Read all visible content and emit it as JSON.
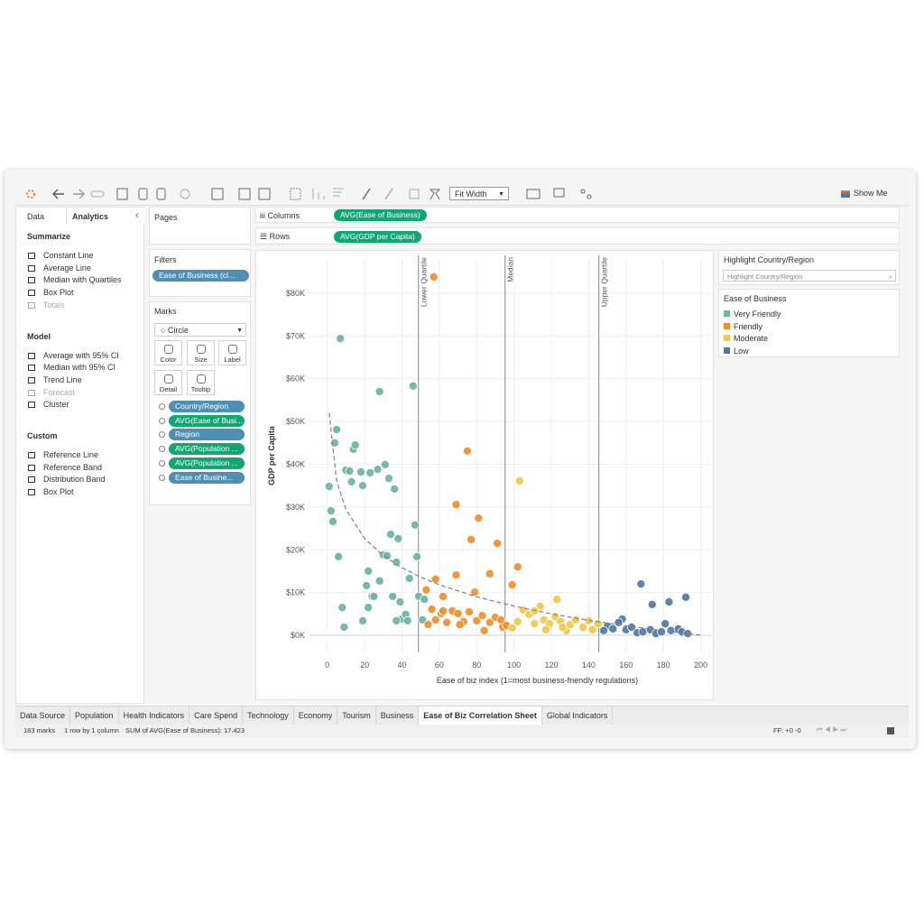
{
  "toolbar": {
    "fit": "Fit Width",
    "show_me": "Show Me"
  },
  "left_pane": {
    "tabs": [
      "Data",
      "Analytics"
    ],
    "sections": [
      {
        "title": "Summarize",
        "items": [
          {
            "label": "Constant Line",
            "enabled": true
          },
          {
            "label": "Average Line",
            "enabled": true
          },
          {
            "label": "Median with Quartiles",
            "enabled": true
          },
          {
            "label": "Box Plot",
            "enabled": true
          },
          {
            "label": "Totals",
            "enabled": false
          }
        ]
      },
      {
        "title": "Model",
        "items": [
          {
            "label": "Average with 95% CI",
            "enabled": true
          },
          {
            "label": "Median with 95% CI",
            "enabled": true
          },
          {
            "label": "Trend Line",
            "enabled": true
          },
          {
            "label": "Forecast",
            "enabled": false
          },
          {
            "label": "Cluster",
            "enabled": true
          }
        ]
      },
      {
        "title": "Custom",
        "items": [
          {
            "label": "Reference Line",
            "enabled": true
          },
          {
            "label": "Reference Band",
            "enabled": true
          },
          {
            "label": "Distribution Band",
            "enabled": true
          },
          {
            "label": "Box Plot",
            "enabled": true
          }
        ]
      }
    ]
  },
  "pages": {
    "title": "Pages"
  },
  "filters": {
    "title": "Filters",
    "pills": [
      {
        "label": "Ease of Business (cl...",
        "color": "#4e8fb5"
      }
    ]
  },
  "marks": {
    "title": "Marks",
    "mark_type": "Circle",
    "buttons": [
      "Color",
      "Size",
      "Label",
      "Detail",
      "Tooltip"
    ],
    "pills": [
      {
        "label": "Country/Region",
        "color": "#4e8fb5"
      },
      {
        "label": "AVG(Ease of Busi...",
        "color": "#12a673"
      },
      {
        "label": "Region",
        "color": "#4e8fb5"
      },
      {
        "label": "AVG(Population ...",
        "color": "#12a673"
      },
      {
        "label": "AVG(Population ...",
        "color": "#12a673"
      },
      {
        "label": "Ease of Busine...",
        "color": "#4e8fb5"
      }
    ]
  },
  "shelves": {
    "columns": {
      "label": "Columns",
      "pill": "AVG(Ease of Business)"
    },
    "rows": {
      "label": "Rows",
      "pill": "AVG(GDP per Capita)"
    }
  },
  "highlight": {
    "title": "Highlight Country/Region",
    "placeholder": "Highlight Country/Region"
  },
  "tabs": [
    {
      "label": "Data Source"
    },
    {
      "label": "Population"
    },
    {
      "label": "Health Indicators"
    },
    {
      "label": "Care Spend"
    },
    {
      "label": "Technology"
    },
    {
      "label": "Economy"
    },
    {
      "label": "Tourism"
    },
    {
      "label": "Business"
    },
    {
      "label": "Ease of Biz Correlation Sheet",
      "active": true
    },
    {
      "label": "Global Indicators"
    }
  ],
  "status_bar": [
    "183 marks",
    "1 row by 1 column",
    "SUM of AVG(Ease of Business): 17.423",
    "FF: +0 -0"
  ],
  "chart_data": {
    "type": "scatter",
    "x_label": "Ease of biz index (1=most business-friendly regulations)",
    "y_label": "GDP per Capita",
    "legend_title": "Ease of Business",
    "xlim": [
      -10,
      206
    ],
    "ylim": [
      -4000,
      88000
    ],
    "xticks": [
      0,
      20,
      40,
      60,
      80,
      100,
      120,
      140,
      160,
      180,
      200
    ],
    "yticks": [
      {
        "value": 0,
        "label": "$0K"
      },
      {
        "value": 10000,
        "label": "$10K"
      },
      {
        "value": 20000,
        "label": "$20K"
      },
      {
        "value": 30000,
        "label": "$30K"
      },
      {
        "value": 40000,
        "label": "$40K"
      },
      {
        "value": 50000,
        "label": "$50K"
      },
      {
        "value": 60000,
        "label": "$60K"
      },
      {
        "value": 70000,
        "label": "$70K"
      },
      {
        "value": 80000,
        "label": "$80K"
      }
    ],
    "grid": true,
    "reference_lines": [
      {
        "label": "Lower Quartile",
        "value": 48.8
      },
      {
        "label": "Median",
        "value": 95.2
      },
      {
        "label": "Upper Quartile",
        "value": 145.4
      }
    ],
    "trend_line": {
      "x": [
        1,
        5,
        10,
        20,
        30,
        40,
        50,
        60,
        80,
        100,
        120,
        140,
        160,
        180,
        200
      ],
      "y": [
        52000,
        36200,
        29400,
        22600,
        18600,
        15800,
        13600,
        11800,
        9000,
        6800,
        5000,
        3500,
        2200,
        1100,
        0
      ]
    },
    "series": [
      {
        "name": "Very Friendly",
        "color": "#6db3a7",
        "x": [
          1,
          2,
          3,
          4,
          5,
          7,
          6,
          8,
          9,
          10,
          12,
          14,
          15,
          13,
          18,
          19,
          23,
          27,
          31,
          33,
          36,
          28,
          46,
          47,
          34,
          38,
          30,
          32,
          48,
          37,
          22,
          21,
          28,
          24,
          25,
          35,
          39,
          22,
          19,
          40,
          42,
          43,
          37,
          49,
          52,
          51,
          44
        ],
        "values": [
          34800,
          29100,
          26600,
          45000,
          48100,
          69400,
          18400,
          6500,
          1900,
          38600,
          38400,
          43500,
          44500,
          35900,
          38200,
          35000,
          38000,
          38800,
          39900,
          36700,
          34200,
          57000,
          58300,
          25800,
          23600,
          22600,
          18800,
          18600,
          18400,
          17100,
          15000,
          11600,
          12700,
          9100,
          9100,
          9100,
          7800,
          6500,
          3400,
          3800,
          4900,
          3400,
          3400,
          9100,
          8400,
          3600,
          13300
        ]
      },
      {
        "name": "Friendly",
        "color": "#f28e2b",
        "x": [
          57,
          75,
          69,
          81,
          77,
          91,
          102,
          87,
          69,
          58,
          53,
          99,
          79,
          62,
          56,
          58,
          61,
          64,
          67,
          70,
          73,
          76,
          80,
          83,
          87,
          90,
          94,
          54,
          84,
          93,
          62,
          71,
          96
        ],
        "values": [
          83800,
          43100,
          30600,
          27400,
          22400,
          21500,
          16000,
          14400,
          14100,
          13100,
          10600,
          11800,
          10100,
          9100,
          6100,
          3600,
          5100,
          3000,
          5700,
          5100,
          3200,
          5500,
          3400,
          4600,
          3000,
          4200,
          1900,
          2500,
          1100,
          3600,
          5700,
          2500,
          2300
        ]
      },
      {
        "name": "Moderate",
        "color": "#f1c84b",
        "x": [
          103,
          114,
          123,
          105,
          108,
          111,
          116,
          119,
          122,
          125,
          128,
          130,
          133,
          137,
          140,
          142,
          145,
          102,
          99,
          117,
          126,
          111
        ],
        "values": [
          36100,
          6800,
          8400,
          5900,
          4900,
          2700,
          3600,
          2700,
          4400,
          3200,
          1100,
          2500,
          3600,
          1900,
          3400,
          1300,
          2700,
          3200,
          1700,
          1300,
          1900,
          5700
        ]
      },
      {
        "name": "Low",
        "color": "#4e79a7",
        "x": [
          168,
          174,
          183,
          192,
          158,
          156,
          150,
          153,
          160,
          163,
          166,
          169,
          173,
          176,
          181,
          184,
          188,
          190,
          193,
          148,
          179
        ],
        "values": [
          12000,
          7200,
          7800,
          8900,
          3800,
          3000,
          2100,
          1500,
          1300,
          1900,
          600,
          800,
          1300,
          400,
          2700,
          1100,
          1500,
          800,
          400,
          1100,
          800
        ]
      }
    ]
  }
}
